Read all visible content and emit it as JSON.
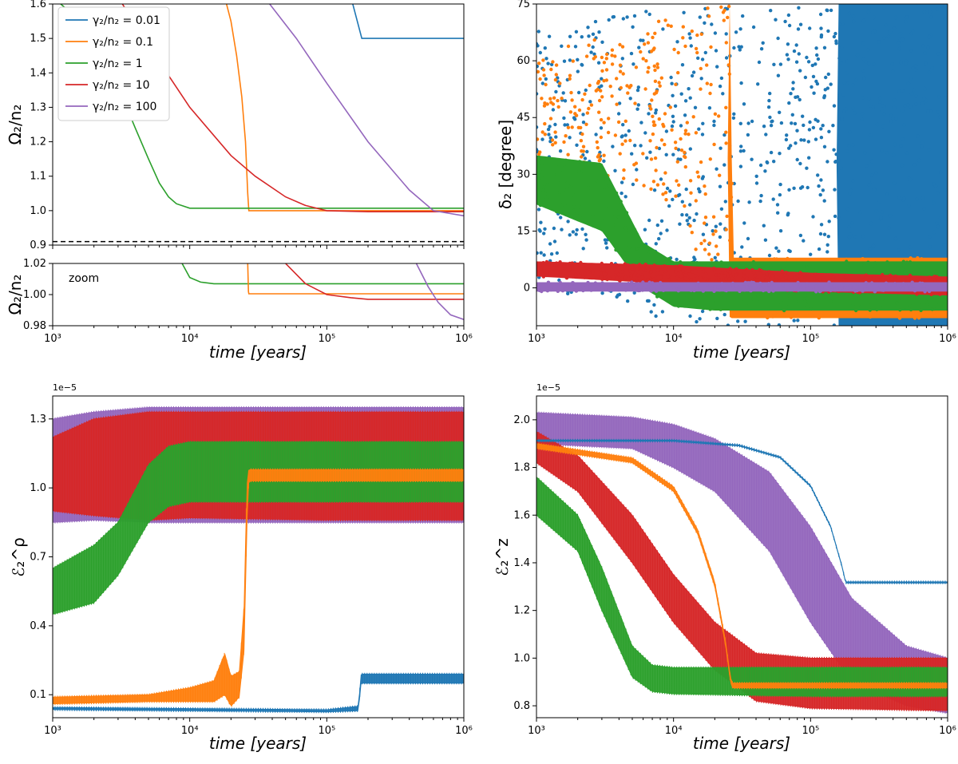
{
  "colors": {
    "blue": "#1f77b4",
    "orange": "#ff7f0e",
    "green": "#2ca02c",
    "red": "#d62728",
    "purple": "#9467bd",
    "black": "#000000"
  },
  "legend_title": "",
  "chart_data": [
    {
      "id": "omega",
      "type": "line",
      "xscale": "log",
      "xlim": [
        1000,
        1000000
      ],
      "ylim": [
        0.9,
        1.6
      ],
      "yticks": [
        "0.9",
        "1.0",
        "1.1",
        "1.2",
        "1.3",
        "1.4",
        "1.5",
        "1.6"
      ],
      "ylabel": "Ω₂/n₂",
      "xlabel": "",
      "legend": {
        "placement": "upper-left",
        "entries": [
          "γ₂/n₂ = 0.01",
          "γ₂/n₂ = 0.1",
          "γ₂/n₂ = 1",
          "γ₂/n₂ = 10",
          "γ₂/n₂ = 100"
        ]
      },
      "reference_line": {
        "y": 0.91,
        "style": "dashed"
      },
      "series": [
        {
          "name": "γ₂/n₂ = 0.01",
          "color": "blue",
          "x": [
            150000,
            180000,
            1000000
          ],
          "y": [
            1.62,
            1.5,
            1.5
          ]
        },
        {
          "name": "γ₂/n₂ = 0.1",
          "color": "orange",
          "x": [
            18000,
            20000,
            22000,
            24000,
            25500,
            26500,
            27000,
            1000000
          ],
          "y": [
            1.62,
            1.55,
            1.45,
            1.33,
            1.2,
            1.05,
            1.0,
            1.0
          ]
        },
        {
          "name": "γ₂/n₂ = 1",
          "color": "green",
          "x": [
            1000,
            1500,
            2000,
            3000,
            4000,
            5000,
            6000,
            7000,
            8000,
            10000,
            1000000
          ],
          "y": [
            1.62,
            1.56,
            1.5,
            1.36,
            1.24,
            1.15,
            1.08,
            1.04,
            1.02,
            1.007,
            1.007
          ]
        },
        {
          "name": "γ₂/n₂ = 10",
          "color": "red",
          "x": [
            3000,
            5000,
            10000,
            20000,
            30000,
            50000,
            70000,
            100000,
            200000,
            1000000
          ],
          "y": [
            1.62,
            1.48,
            1.3,
            1.16,
            1.1,
            1.04,
            1.015,
            1.0,
            0.997,
            0.997
          ]
        },
        {
          "name": "γ₂/n₂ = 100",
          "color": "purple",
          "x": [
            35000,
            60000,
            100000,
            200000,
            400000,
            600000,
            1000000
          ],
          "y": [
            1.62,
            1.5,
            1.37,
            1.2,
            1.06,
            1.0,
            0.985
          ]
        }
      ]
    },
    {
      "id": "zoom",
      "type": "line",
      "xscale": "log",
      "xlim": [
        1000,
        1000000
      ],
      "ylim": [
        0.98,
        1.02
      ],
      "yticks": [
        "0.98",
        "1.00",
        "1.02"
      ],
      "ylabel": "Ω₂/n₂",
      "xlabel": "time [years]",
      "xticks": [
        "10³",
        "10⁴",
        "10⁵",
        "10⁶"
      ],
      "annotation": "zoom",
      "series": [
        {
          "name": "γ₂/n₂ = 1",
          "color": "green",
          "x": [
            8800,
            10000,
            12000,
            15000,
            1000000
          ],
          "y": [
            1.02,
            1.011,
            1.008,
            1.007,
            1.007
          ]
        },
        {
          "name": "γ₂/n₂ = 0.1",
          "color": "orange",
          "x": [
            26500,
            26800,
            27000,
            1000000
          ],
          "y": [
            1.02,
            1.002,
            1.0005,
            1.0005
          ]
        },
        {
          "name": "γ₂/n₂ = 10",
          "color": "red",
          "x": [
            50000,
            70000,
            100000,
            150000,
            200000,
            1000000
          ],
          "y": [
            1.02,
            1.007,
            1.0,
            0.998,
            0.997,
            0.997
          ]
        },
        {
          "name": "γ₂/n₂ = 100",
          "color": "purple",
          "x": [
            450000,
            550000,
            650000,
            800000,
            1000000
          ],
          "y": [
            1.02,
            1.005,
            0.995,
            0.987,
            0.984
          ]
        }
      ]
    },
    {
      "id": "delta",
      "type": "scatter",
      "xscale": "log",
      "xlim": [
        1000,
        1000000
      ],
      "ylim": [
        -10,
        75
      ],
      "yticks": [
        "0",
        "15",
        "30",
        "45",
        "60",
        "75"
      ],
      "ylabel": "δ₂ [degree]",
      "xlabel": "time [years]",
      "xticks": [
        "10³",
        "10⁴",
        "10⁵",
        "10⁶"
      ],
      "series": [
        {
          "name": "γ₂/n₂ = 0.01",
          "color": "blue",
          "envelope_x": [
            1000,
            5000,
            10000,
            20000,
            40000,
            100000,
            150000,
            180000,
            1000000
          ],
          "envelope_low": [
            0,
            -5,
            -10,
            -10,
            -10,
            -10,
            -10,
            -10,
            -10
          ],
          "envelope_high": [
            70,
            75,
            75,
            75,
            75,
            75,
            75,
            75,
            75
          ]
        },
        {
          "name": "γ₂/n₂ = 0.1",
          "color": "orange",
          "envelope_x": [
            1000,
            5000,
            10000,
            20000,
            26000,
            27000,
            1000000
          ],
          "envelope_low": [
            30,
            28,
            20,
            0,
            -8,
            -8,
            -8
          ],
          "envelope_high": [
            62,
            68,
            72,
            75,
            75,
            8,
            8
          ]
        },
        {
          "name": "γ₂/n₂ = 1",
          "color": "green",
          "envelope_x": [
            1000,
            3000,
            6000,
            10000,
            20000,
            1000000
          ],
          "envelope_low": [
            22,
            15,
            0,
            -5,
            -6,
            -6
          ],
          "envelope_high": [
            35,
            33,
            12,
            7,
            7,
            7
          ]
        },
        {
          "name": "γ₂/n₂ = 10",
          "color": "red",
          "envelope_x": [
            1000,
            10000,
            100000,
            1000000
          ],
          "envelope_low": [
            3,
            1,
            -1,
            -2
          ],
          "envelope_high": [
            7,
            6,
            4,
            3
          ]
        },
        {
          "name": "γ₂/n₂ = 100",
          "color": "purple",
          "envelope_x": [
            1000,
            1000000
          ],
          "envelope_low": [
            -1,
            -1
          ],
          "envelope_high": [
            1.5,
            1.5
          ]
        }
      ]
    },
    {
      "id": "eps_rho",
      "type": "line",
      "xscale": "log",
      "xlim": [
        1000,
        1000000
      ],
      "ylim": [
        0.0,
        1.4
      ],
      "yticks": [
        "0.1",
        "0.4",
        "0.7",
        "1.0",
        "1.3"
      ],
      "ylabel": "ℰ₂^ρ",
      "xlabel": "time [years]",
      "xticks": [
        "10³",
        "10⁴",
        "10⁵",
        "10⁶"
      ],
      "scale_label": "1e−5",
      "series": [
        {
          "name": "γ₂/n₂ = 100",
          "color": "purple",
          "x": [
            1000,
            2000,
            5000,
            10000,
            100000,
            1000000
          ],
          "low": [
            0.85,
            0.86,
            0.85,
            0.85,
            0.85,
            0.85
          ],
          "high": [
            1.3,
            1.33,
            1.35,
            1.35,
            1.35,
            1.35
          ]
        },
        {
          "name": "γ₂/n₂ = 10",
          "color": "red",
          "x": [
            1000,
            2000,
            5000,
            10000,
            100000,
            1000000
          ],
          "low": [
            0.9,
            0.88,
            0.86,
            0.87,
            0.86,
            0.86
          ],
          "high": [
            1.22,
            1.3,
            1.33,
            1.33,
            1.33,
            1.33
          ]
        },
        {
          "name": "γ₂/n₂ = 1",
          "color": "green",
          "x": [
            1000,
            2000,
            3000,
            5000,
            7000,
            10000,
            100000,
            1000000
          ],
          "low": [
            0.45,
            0.5,
            0.62,
            0.85,
            0.92,
            0.94,
            0.94,
            0.94
          ],
          "high": [
            0.65,
            0.75,
            0.85,
            1.1,
            1.18,
            1.2,
            1.2,
            1.2
          ]
        },
        {
          "name": "γ₂/n₂ = 0.1",
          "color": "orange",
          "x": [
            1000,
            5000,
            10000,
            15000,
            18000,
            20000,
            23000,
            25000,
            26000,
            27000,
            1000000
          ],
          "low": [
            0.06,
            0.07,
            0.07,
            0.07,
            0.1,
            0.05,
            0.09,
            0.3,
            0.8,
            1.03,
            1.03
          ],
          "high": [
            0.09,
            0.1,
            0.13,
            0.16,
            0.28,
            0.18,
            0.2,
            0.5,
            1.0,
            1.08,
            1.08
          ]
        },
        {
          "name": "γ₂/n₂ = 0.01",
          "color": "blue",
          "x": [
            1000,
            10000,
            100000,
            170000,
            178000,
            185000,
            1000000
          ],
          "low": [
            0.035,
            0.03,
            0.025,
            0.03,
            0.15,
            0.15,
            0.15
          ],
          "high": [
            0.045,
            0.04,
            0.035,
            0.05,
            0.19,
            0.19,
            0.19
          ]
        }
      ]
    },
    {
      "id": "eps_z",
      "type": "line",
      "xscale": "log",
      "xlim": [
        1000,
        1000000
      ],
      "ylim": [
        0.75,
        2.1
      ],
      "yticks": [
        "0.8",
        "1.0",
        "1.2",
        "1.4",
        "1.6",
        "1.8",
        "2.0"
      ],
      "ylabel": "ℰ₂^z",
      "xlabel": "time [years]",
      "xticks": [
        "10³",
        "10⁴",
        "10⁵",
        "10⁶"
      ],
      "scale_label": "1e−5",
      "series": [
        {
          "name": "γ₂/n₂ = 100",
          "color": "purple",
          "x": [
            1000,
            5000,
            10000,
            20000,
            50000,
            100000,
            200000,
            500000,
            1000000
          ],
          "low": [
            1.9,
            1.88,
            1.8,
            1.7,
            1.45,
            1.15,
            0.9,
            0.8,
            0.77
          ],
          "high": [
            2.03,
            2.01,
            1.98,
            1.92,
            1.78,
            1.55,
            1.25,
            1.05,
            1.0
          ]
        },
        {
          "name": "γ₂/n₂ = 10",
          "color": "red",
          "x": [
            1000,
            2000,
            5000,
            10000,
            20000,
            40000,
            100000,
            1000000
          ],
          "low": [
            1.82,
            1.7,
            1.4,
            1.15,
            0.95,
            0.82,
            0.79,
            0.78
          ],
          "high": [
            1.95,
            1.85,
            1.6,
            1.35,
            1.15,
            1.02,
            1.0,
            1.0
          ]
        },
        {
          "name": "γ₂/n₂ = 1",
          "color": "green",
          "x": [
            1000,
            2000,
            3000,
            5000,
            7000,
            10000,
            100000,
            1000000
          ],
          "low": [
            1.6,
            1.45,
            1.2,
            0.92,
            0.86,
            0.85,
            0.84,
            0.84
          ],
          "high": [
            1.76,
            1.6,
            1.38,
            1.05,
            0.97,
            0.96,
            0.96,
            0.96
          ]
        },
        {
          "name": "γ₂/n₂ = 0.1",
          "color": "orange",
          "x": [
            1000,
            5000,
            10000,
            15000,
            20000,
            24000,
            26000,
            27000,
            1000000
          ],
          "low": [
            1.88,
            1.82,
            1.7,
            1.52,
            1.3,
            1.05,
            0.9,
            0.875,
            0.875
          ],
          "high": [
            1.9,
            1.84,
            1.72,
            1.54,
            1.32,
            1.07,
            0.92,
            0.895,
            0.895
          ]
        },
        {
          "name": "γ₂/n₂ = 0.01",
          "color": "blue",
          "x": [
            1000,
            10000,
            30000,
            60000,
            100000,
            140000,
            170000,
            180000,
            1000000
          ],
          "low": [
            1.91,
            1.91,
            1.89,
            1.84,
            1.72,
            1.55,
            1.38,
            1.315,
            1.315
          ],
          "high": [
            1.915,
            1.915,
            1.895,
            1.845,
            1.725,
            1.555,
            1.385,
            1.32,
            1.32
          ]
        }
      ]
    }
  ]
}
